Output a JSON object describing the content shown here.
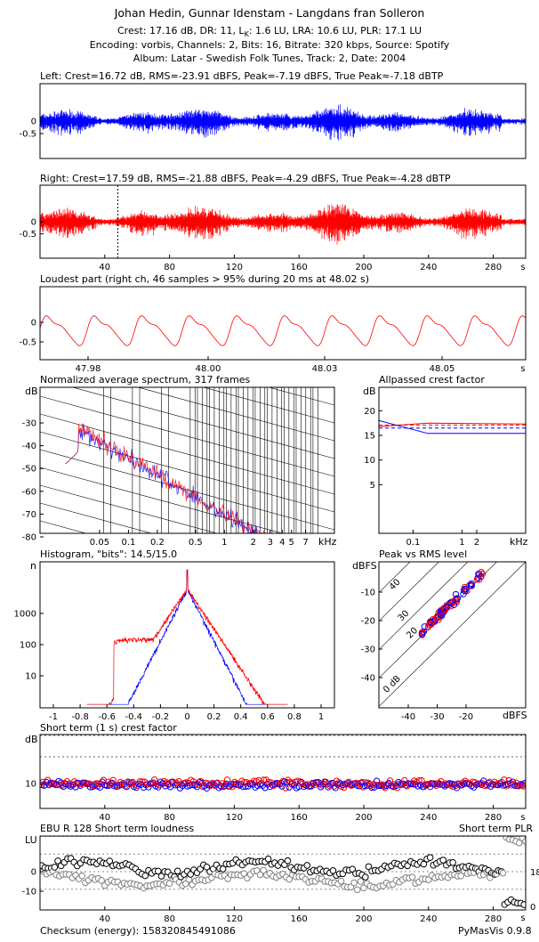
{
  "header": {
    "title": "Johan Hedin, Gunnar Idenstam - Langdans fran Solleron",
    "line1": "Crest: 17.16 dB,  DR: 11,  L",
    "line1_sub": "K",
    "line1_rest": ": 1.6 LU,  LRA: 10.6 LU,  PLR: 17.1 LU",
    "line2": "Encoding: vorbis,  Channels: 2,  Bits: 16,  Bitrate: 320 kbps,  Source: Spotify",
    "line3": "Album: Latar - Swedish Folk Tunes,  Track: 2,  Date: 2004"
  },
  "colors": {
    "left": "#0000ff",
    "right": "#ff0000",
    "black": "#000000",
    "gray": "#808080"
  },
  "chart_data": [
    {
      "type": "line",
      "title": "Left: Crest=16.72 dB, RMS=-23.91 dBFS, Peak=-7.19 dBFS, True Peak≈-7.18 dBTP",
      "yticks": [
        "0",
        "-0.5"
      ],
      "xlim": [
        0,
        300
      ],
      "ylim": [
        -0.9,
        0.9
      ],
      "series": [
        {
          "color": "#0000ff"
        }
      ]
    },
    {
      "type": "line",
      "title": "Right: Crest=17.59 dB, RMS=-21.88 dBFS, Peak=-4.29 dBFS, True Peak≈-4.28 dBTP",
      "yticks": [
        "0",
        "-0.5"
      ],
      "xticks": [
        "40",
        "80",
        "120",
        "160",
        "200",
        "240",
        "280"
      ],
      "xunit": "s",
      "xlim": [
        0,
        300
      ],
      "marker_x": 48.02,
      "series": [
        {
          "color": "#ff0000"
        }
      ]
    },
    {
      "type": "line",
      "title": "Loudest part (right ch, 46 samples > 95% during 20 ms at 48.02 s)",
      "yticks": [
        "0",
        "-0.5"
      ],
      "xticks": [
        "47.98",
        "48.00",
        "48.03",
        "48.05"
      ],
      "xunit": "s",
      "series": [
        {
          "color": "#ff0000"
        }
      ]
    },
    {
      "type": "line",
      "title": "Normalized average spectrum, 317 frames",
      "ylabel": "dB",
      "yticks": [
        "-30",
        "-40",
        "-50",
        "-60",
        "-70",
        "-80"
      ],
      "xticks": [
        "0.05",
        "0.1",
        "0.2",
        "0.5",
        "1",
        "2",
        "3",
        "4",
        "5",
        "7"
      ],
      "xunit": "kHz",
      "xscale": "log",
      "series": [
        {
          "color": "#0000ff"
        },
        {
          "color": "#ff0000"
        }
      ]
    },
    {
      "type": "line",
      "title": "Allpassed crest factor",
      "ylabel": "dB",
      "yticks": [
        "20",
        "15",
        "10",
        "5"
      ],
      "xticks": [
        "0.1",
        "1",
        "2"
      ],
      "xunit": "kHz",
      "xscale": "log",
      "series": [
        {
          "color": "#ff0000",
          "x": [
            0.02,
            0.2,
            20
          ],
          "y": [
            16.8,
            17.5,
            17.3
          ]
        },
        {
          "color": "#0000ff",
          "x": [
            0.02,
            0.2,
            20
          ],
          "y": [
            18.0,
            15.4,
            15.4
          ]
        }
      ]
    },
    {
      "type": "line",
      "title": "Histogram, \"bits\": 14.5/15.0",
      "ylabel": "n",
      "yticks": [
        "1000",
        "100",
        "10"
      ],
      "xticks": [
        "-1",
        "-0.8",
        "-0.6",
        "-0.4",
        "-0.2",
        "0",
        "0.2",
        "0.4",
        "0.6",
        "0.8",
        "1"
      ],
      "yscale": "log",
      "series": [
        {
          "color": "#0000ff"
        },
        {
          "color": "#ff0000"
        }
      ]
    },
    {
      "type": "scatter",
      "title": "Peak vs RMS level",
      "ylabel": "dBFS",
      "xlabel": "dBFS",
      "yticks": [
        "-10",
        "-20",
        "-30",
        "-40"
      ],
      "xticks": [
        "-40",
        "-30",
        "-20"
      ],
      "diag_labels": [
        "40",
        "30",
        "20",
        "0 dB"
      ],
      "series": [
        {
          "color": "#0000ff"
        },
        {
          "color": "#ff0000"
        }
      ]
    },
    {
      "type": "scatter",
      "title": "Short term (1 s) crest factor",
      "ylabel": "dB",
      "yticks": [
        "10"
      ],
      "xticks": [
        "40",
        "80",
        "120",
        "160",
        "200",
        "240",
        "280"
      ],
      "xunit": "s",
      "series": [
        {
          "color": "#0000ff"
        },
        {
          "color": "#ff0000"
        }
      ]
    },
    {
      "type": "scatter",
      "title": "EBU R 128 Short term loudness",
      "title_right": "Short term PLR",
      "ylabel": "LU",
      "yticks": [
        "0",
        "-10"
      ],
      "xticks": [
        "40",
        "80",
        "120",
        "160",
        "200",
        "240",
        "280"
      ],
      "xunit": "s",
      "right_ticks": [
        "18",
        "0"
      ],
      "series": [
        {
          "color": "#000000"
        },
        {
          "color": "#808080"
        }
      ]
    }
  ],
  "footer": {
    "checksum": "Checksum (energy): 158320845491086",
    "version": "PyMasVis 0.9.8"
  }
}
